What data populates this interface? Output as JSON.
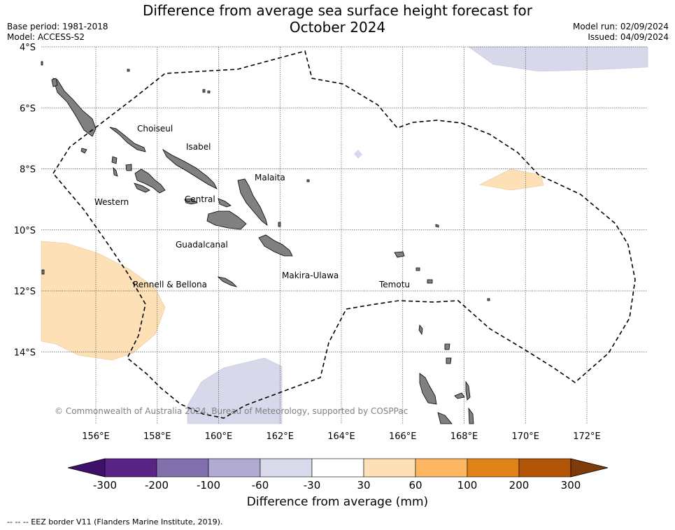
{
  "title_line1": "Difference from average sea surface height forecast for",
  "title_line2": "October 2024",
  "meta_left": {
    "base_period": "Base period: 1981-2018",
    "model": "Model: ACCESS-S2"
  },
  "meta_right": {
    "model_run": "Model run: 02/09/2024",
    "issued": "Issued: 04/09/2024"
  },
  "map": {
    "lat_labels": [
      "4°S",
      "6°S",
      "8°S",
      "10°S",
      "12°S",
      "14°S"
    ],
    "lon_labels": [
      "156°E",
      "158°E",
      "160°E",
      "162°E",
      "164°E",
      "166°E",
      "168°E",
      "170°E",
      "172°E"
    ],
    "lat_values": [
      -4,
      -6,
      -8,
      -10,
      -12,
      -14
    ],
    "lon_values": [
      156,
      158,
      160,
      162,
      164,
      166,
      168,
      170,
      172
    ],
    "provinces": [
      "Choiseul",
      "Isabel",
      "Malaita",
      "Western",
      "Central",
      "Guadalcanal",
      "Makira-Ulawa",
      "Rennell & Bellona",
      "Temotu"
    ],
    "copyright": "© Commonwealth of Australia 2024, Bureau of Meteorology, supported by COSPPac",
    "colors": {
      "land": "#808080",
      "light_orange": "#fde0b6",
      "light_purple": "#d7d8ea"
    }
  },
  "colorbar": {
    "ticks": [
      "-300",
      "-200",
      "-100",
      "-60",
      "-30",
      "30",
      "60",
      "100",
      "200",
      "300"
    ],
    "colors": [
      "#3f0f6b",
      "#5a2487",
      "#8070ad",
      "#b0a9d1",
      "#d8d9ea",
      "#ffffff",
      "#fedfb6",
      "#fcb661",
      "#e08217",
      "#b25507",
      "#7e3a07"
    ],
    "label": "Difference from average (mm)"
  },
  "footnote": "--  --  -- EEZ border V11 (Flanders Marine Institute, 2019)."
}
